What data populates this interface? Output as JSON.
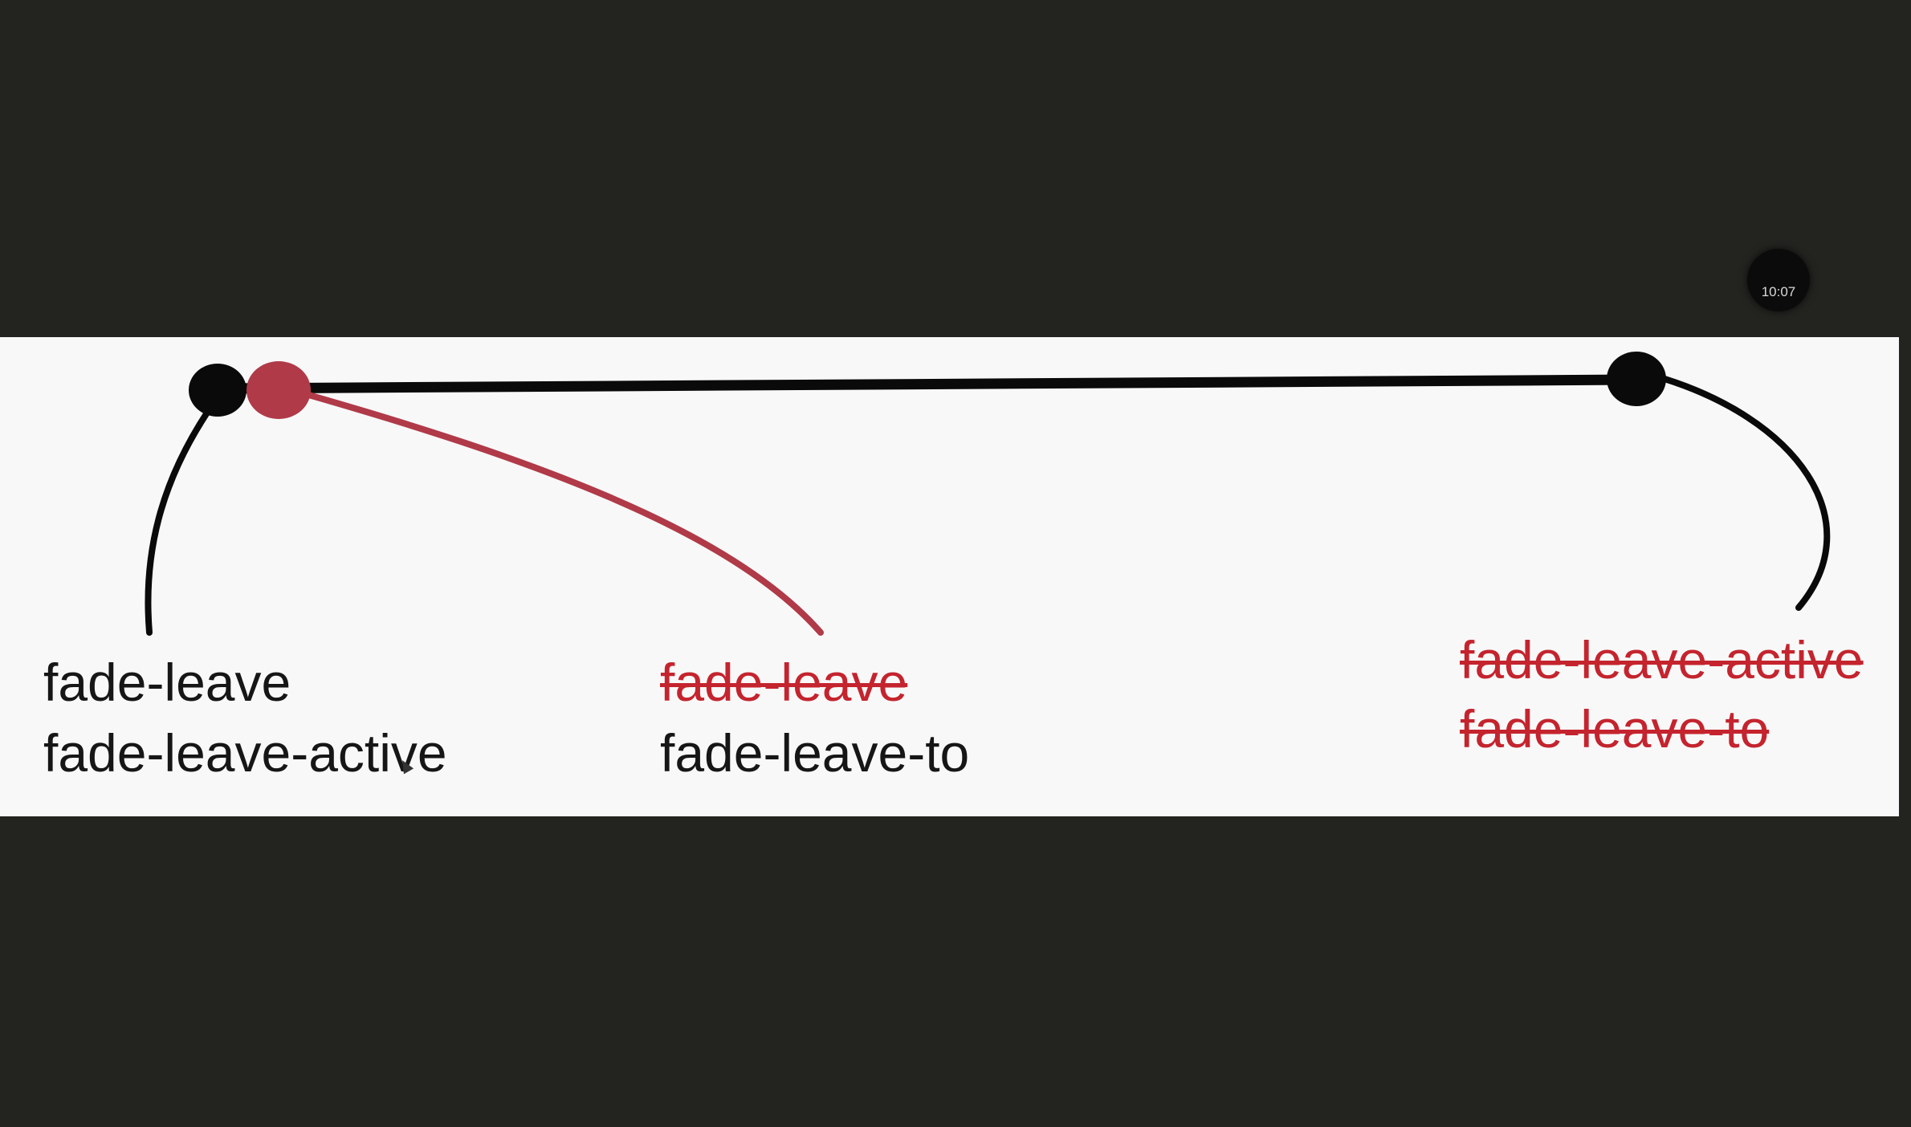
{
  "overlay": {
    "clock_time": "10:07"
  },
  "colors": {
    "background_dark": "#232320",
    "slide_background": "#f8f8f8",
    "line_black": "#0a0a0a",
    "accent_red": "#b03a48",
    "struck_text_red": "#c4242e"
  },
  "labels": {
    "start": {
      "line1": "fade-leave",
      "line2": "fade-leave-active"
    },
    "next_frame": {
      "line1_struck": "fade-leave",
      "line2": "fade-leave-to"
    },
    "end": {
      "line1_struck": "fade-leave-active",
      "line2_struck": "fade-leave-to"
    }
  }
}
